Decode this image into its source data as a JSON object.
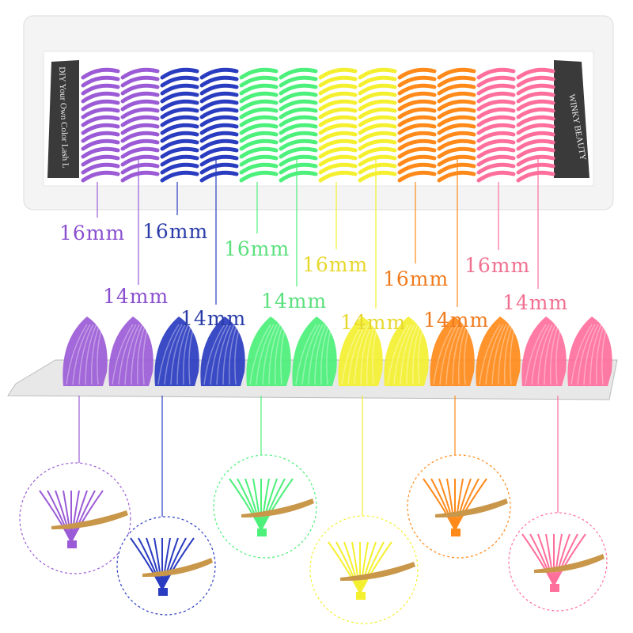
{
  "tray": {
    "left_label": "DIY Your Own Color Lash L",
    "brand": "WINKY BEAUTY"
  },
  "colors": {
    "purple": "#9b5bd6",
    "blue": "#2a3cc0",
    "green": "#4cf07a",
    "yellow": "#f4f030",
    "orange": "#ff8a1a",
    "pink": "#ff6f9c"
  },
  "labels_16": [
    {
      "text": "16mm",
      "color": "#8a4fcf"
    },
    {
      "text": "16mm",
      "color": "#2a3ca8"
    },
    {
      "text": "16mm",
      "color": "#5ae07c"
    },
    {
      "text": "16mm",
      "color": "#e6d82c"
    },
    {
      "text": "16mm",
      "color": "#f07a1c"
    },
    {
      "text": "16mm",
      "color": "#f07090"
    }
  ],
  "labels_14": [
    {
      "text": "14mm",
      "color": "#8a4fcf"
    },
    {
      "text": "14mm",
      "color": "#2a3ca8"
    },
    {
      "text": "14mm",
      "color": "#5ae07c"
    },
    {
      "text": "14mm",
      "color": "#e6d82c"
    },
    {
      "text": "14mm",
      "color": "#f07a1c"
    },
    {
      "text": "14mm",
      "color": "#f07090"
    }
  ]
}
